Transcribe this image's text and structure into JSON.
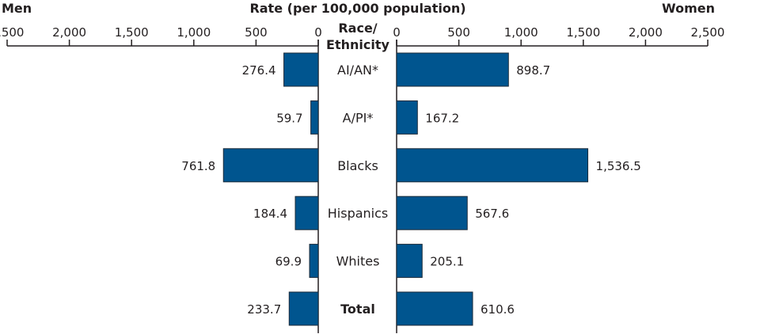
{
  "chart_data": {
    "type": "bar",
    "orientation": "horizontal-butterfly",
    "title": "Rate (per 100,000 population)",
    "category_header": [
      "Race/",
      "Ethnicity"
    ],
    "left_panel_label": "Men",
    "right_panel_label": "Women",
    "categories": [
      "AI/AN*",
      "A/PI*",
      "Blacks",
      "Hispanics",
      "Whites",
      "Total"
    ],
    "bold_categories": [
      "Total"
    ],
    "series": [
      {
        "name": "Men",
        "values": [
          276.4,
          59.7,
          761.8,
          184.4,
          69.9,
          233.7
        ],
        "labels": [
          "276.4",
          "59.7",
          "761.8",
          "184.4",
          "69.9",
          "233.7"
        ]
      },
      {
        "name": "Women",
        "values": [
          898.7,
          167.2,
          1536.5,
          567.6,
          205.1,
          610.6
        ],
        "labels": [
          "898.7",
          "167.2",
          "1,536.5",
          "567.6",
          "205.1",
          "610.6"
        ]
      }
    ],
    "xlim": [
      0,
      2500
    ],
    "ticks": [
      0,
      500,
      1000,
      1500,
      2000,
      2500
    ],
    "tick_labels": [
      "0",
      "500",
      "1,000",
      "1,500",
      "2,000",
      "2,500"
    ],
    "grid": false,
    "colors": {
      "bar": "#00558f",
      "bar_outline": "#1c2b39",
      "axis": "#231f20"
    }
  }
}
